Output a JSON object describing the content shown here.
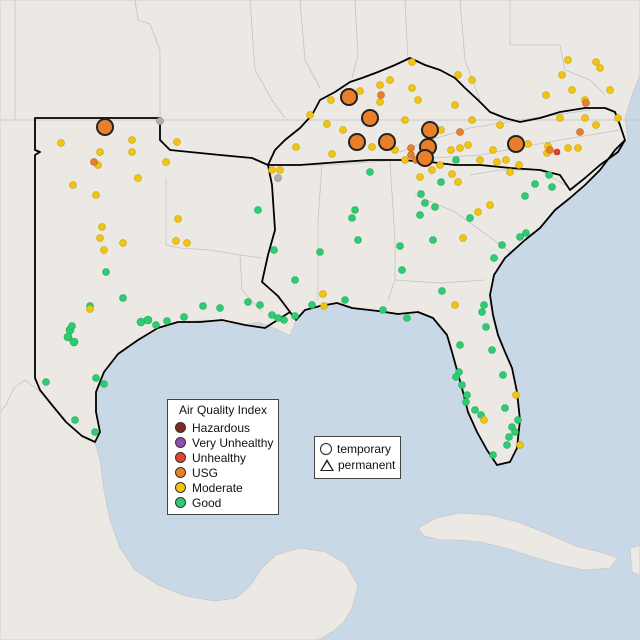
{
  "legend": {
    "title": "Air Quality Index",
    "categories": [
      {
        "label": "Hazardous",
        "color": "#7e2a22"
      },
      {
        "label": "Very Unhealthy",
        "color": "#8e4fa8"
      },
      {
        "label": "Unhealthy",
        "color": "#e0452c"
      },
      {
        "label": "USG",
        "color": "#e8802b"
      },
      {
        "label": "Moderate",
        "color": "#f1c40f"
      },
      {
        "label": "Good",
        "color": "#2ecc71"
      }
    ]
  },
  "monitor_types": {
    "temporary": "temporary",
    "permanent": "permanent"
  },
  "colors": {
    "ocean": "#c9d8e6",
    "land": "#ece9e5",
    "highlighted_border": "#000000",
    "inactive_monitor": "#b0b0b0"
  }
}
